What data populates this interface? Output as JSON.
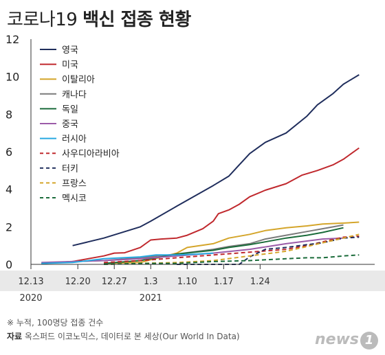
{
  "header": {
    "title_light": "코로나19",
    "title_bold": "백신 접종 현황"
  },
  "footer": {
    "note": "※ 누적, 100명당 접종 건수",
    "source_label": "자료",
    "source_text": "옥스퍼드 이코노믹스, 데이터로 본 세상(Our World In Data)",
    "logo_text": "news",
    "logo_badge": "1"
  },
  "chart_data": {
    "type": "line",
    "title": "코로나19 백신 접종 현황",
    "xlabel": "",
    "ylabel": "",
    "x_ticks": [
      "12.13",
      "12.20",
      "12.27",
      "1.3",
      "1.10",
      "1.17",
      "1.24"
    ],
    "year_labels": [
      {
        "text": "2020",
        "at_tick": "12.13"
      },
      {
        "text": "2021",
        "at_tick": "1.3"
      }
    ],
    "ylim": [
      0,
      12
    ],
    "y_ticks": [
      0,
      2,
      4,
      6,
      8,
      10,
      12
    ],
    "x_unit": "days since 12.13 (date axis)",
    "legend_position": "top-left",
    "series": [
      {
        "name": "영국",
        "color": "#1f2d5c",
        "style": "solid",
        "x": [
          8,
          14,
          21,
          23,
          28,
          35,
          38,
          40,
          42,
          45,
          49,
          53,
          55,
          58,
          60,
          63
        ],
        "values": [
          1.0,
          1.4,
          2.0,
          2.3,
          3.1,
          4.2,
          4.7,
          5.3,
          5.9,
          6.5,
          7.0,
          7.9,
          8.5,
          9.1,
          9.6,
          10.1
        ]
      },
      {
        "name": "미국",
        "color": "#c0282d",
        "style": "solid",
        "x": [
          2,
          8,
          14,
          16,
          18,
          21,
          23,
          25,
          28,
          30,
          33,
          35,
          36,
          38,
          40,
          42,
          45,
          49,
          52,
          55,
          58,
          60,
          63
        ],
        "values": [
          0.05,
          0.15,
          0.45,
          0.6,
          0.62,
          0.9,
          1.3,
          1.35,
          1.4,
          1.55,
          1.9,
          2.3,
          2.7,
          2.9,
          3.2,
          3.6,
          3.95,
          4.3,
          4.75,
          5.0,
          5.3,
          5.6,
          6.2
        ]
      },
      {
        "name": "이탈리아",
        "color": "#d4a52a",
        "style": "solid",
        "x": [
          14,
          21,
          28,
          30,
          35,
          38,
          42,
          45,
          49,
          53,
          56,
          60,
          63
        ],
        "values": [
          0.05,
          0.1,
          0.6,
          0.9,
          1.1,
          1.4,
          1.6,
          1.8,
          1.95,
          2.05,
          2.15,
          2.2,
          2.25
        ]
      },
      {
        "name": "캐나다",
        "color": "#7a7a7a",
        "style": "solid",
        "x": [
          2,
          8,
          14,
          21,
          28,
          35,
          38,
          42,
          45,
          49,
          53,
          56,
          60
        ],
        "values": [
          0.05,
          0.15,
          0.2,
          0.35,
          0.55,
          0.8,
          0.95,
          1.1,
          1.35,
          1.55,
          1.75,
          1.9,
          2.1
        ]
      },
      {
        "name": "독일",
        "color": "#1a6b3a",
        "style": "solid",
        "x": [
          14,
          21,
          28,
          35,
          38,
          42,
          45,
          49,
          53,
          56,
          60
        ],
        "values": [
          0.05,
          0.2,
          0.55,
          0.75,
          0.9,
          1.05,
          1.2,
          1.4,
          1.55,
          1.7,
          1.95
        ]
      },
      {
        "name": "중국",
        "color": "#9b5ba8",
        "style": "solid",
        "x": [
          2,
          8,
          14,
          21,
          28,
          35,
          42,
          49,
          56,
          60
        ],
        "values": [
          0.1,
          0.15,
          0.2,
          0.3,
          0.45,
          0.6,
          0.8,
          1.1,
          1.35,
          1.4
        ]
      },
      {
        "name": "러시아",
        "color": "#27a9e1",
        "style": "solid",
        "x": [
          2,
          8,
          14,
          21,
          24,
          28,
          32,
          35
        ],
        "values": [
          0.05,
          0.1,
          0.3,
          0.4,
          0.5,
          0.5,
          0.55,
          0.6
        ]
      },
      {
        "name": "사우디아라비아",
        "color": "#c0282d",
        "style": "dashed",
        "x": [
          14,
          21,
          28,
          35,
          42,
          49,
          53,
          56,
          60,
          63
        ],
        "values": [
          0.1,
          0.2,
          0.35,
          0.5,
          0.65,
          0.8,
          1.0,
          1.2,
          1.45,
          1.5
        ]
      },
      {
        "name": "터키",
        "color": "#1f2d5c",
        "style": "dashed",
        "x": [
          28,
          35,
          40,
          42,
          45,
          49,
          53,
          56,
          60,
          63
        ],
        "values": [
          0.0,
          0.0,
          0.0,
          0.4,
          0.8,
          0.9,
          1.05,
          1.15,
          1.4,
          1.45
        ]
      },
      {
        "name": "프랑스",
        "color": "#d4a52a",
        "style": "dashed",
        "x": [
          14,
          21,
          28,
          35,
          42,
          49,
          53,
          56,
          60,
          63
        ],
        "values": [
          0.0,
          0.05,
          0.1,
          0.2,
          0.45,
          0.7,
          0.95,
          1.15,
          1.4,
          1.6
        ]
      },
      {
        "name": "멕시코",
        "color": "#1a6b3a",
        "style": "dashed",
        "x": [
          14,
          21,
          28,
          35,
          42,
          49,
          53,
          56,
          60,
          63
        ],
        "values": [
          0.0,
          0.05,
          0.05,
          0.15,
          0.2,
          0.3,
          0.35,
          0.35,
          0.45,
          0.5
        ]
      }
    ]
  }
}
